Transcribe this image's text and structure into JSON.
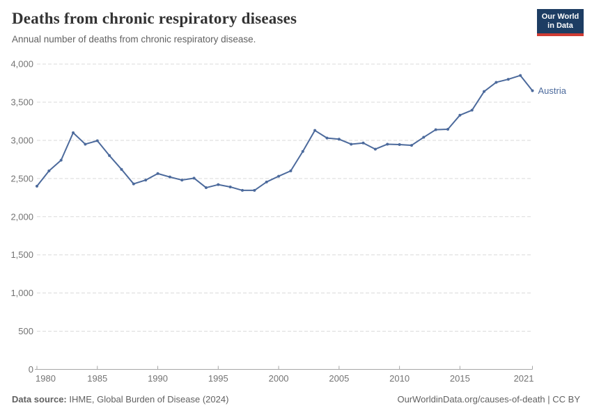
{
  "header": {
    "title": "Deaths from chronic respiratory diseases",
    "subtitle": "Annual number of deaths from chronic respiratory disease.",
    "logo": {
      "line1": "Our World",
      "line2": "in Data",
      "bg_color": "#1d3d63",
      "bar_color": "#cf3b33"
    }
  },
  "chart_data": {
    "type": "line",
    "title": "Deaths from chronic respiratory diseases",
    "subtitle": "Annual number of deaths from chronic respiratory disease.",
    "xlabel": "",
    "ylabel": "",
    "xlim": [
      1980,
      2021
    ],
    "ylim": [
      0,
      4000
    ],
    "xticks": [
      1980,
      1985,
      1990,
      1995,
      2000,
      2005,
      2010,
      2015,
      2021
    ],
    "yticks": [
      0,
      500,
      1000,
      1500,
      2000,
      2500,
      3000,
      3500,
      4000
    ],
    "grid": "horizontal-dashed",
    "legend_position": "end-of-line-label",
    "x": [
      1980,
      1981,
      1982,
      1983,
      1984,
      1985,
      1986,
      1987,
      1988,
      1989,
      1990,
      1991,
      1992,
      1993,
      1994,
      1995,
      1996,
      1997,
      1998,
      1999,
      2000,
      2001,
      2002,
      2003,
      2004,
      2005,
      2006,
      2007,
      2008,
      2009,
      2010,
      2011,
      2012,
      2013,
      2014,
      2015,
      2016,
      2017,
      2018,
      2019,
      2020,
      2021
    ],
    "series": [
      {
        "name": "Austria",
        "color": "#4C6A9C",
        "values": [
          2400,
          2600,
          2740,
          3100,
          2950,
          2995,
          2800,
          2620,
          2430,
          2480,
          2565,
          2520,
          2480,
          2505,
          2380,
          2420,
          2390,
          2345,
          2345,
          2455,
          2530,
          2600,
          2855,
          3130,
          3030,
          3015,
          2950,
          2965,
          2885,
          2950,
          2945,
          2935,
          3040,
          3140,
          3145,
          3330,
          3395,
          3640,
          3760,
          3800,
          3850,
          3650
        ]
      }
    ]
  },
  "footer": {
    "source_label": "Data source:",
    "source_text": " IHME, Global Burden of Disease (2024)",
    "rights": "OurWorldinData.org/causes-of-death | CC BY"
  }
}
